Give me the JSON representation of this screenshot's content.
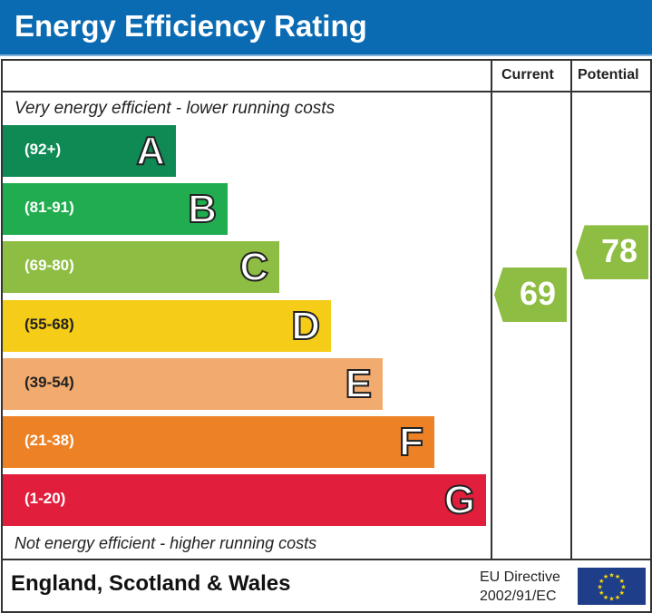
{
  "title": "Energy Efficiency Rating",
  "columns": {
    "current": "Current",
    "potential": "Potential"
  },
  "top_note": "Very energy efficient - lower running costs",
  "bottom_note": "Not energy efficient - higher running costs",
  "footer": {
    "region": "England, Scotland & Wales",
    "directive_line1": "EU Directive",
    "directive_line2": "2002/91/EC",
    "flag_icon": "eu-flag-icon"
  },
  "chart_data": {
    "type": "bar",
    "categories": [
      "A",
      "B",
      "C",
      "D",
      "E",
      "F",
      "G"
    ],
    "ranges": [
      "(92+)",
      "(81-91)",
      "(69-80)",
      "(55-68)",
      "(39-54)",
      "(21-38)",
      "(1-20)"
    ],
    "range_bounds": [
      [
        92,
        100
      ],
      [
        81,
        91
      ],
      [
        69,
        80
      ],
      [
        55,
        68
      ],
      [
        39,
        54
      ],
      [
        21,
        38
      ],
      [
        1,
        20
      ]
    ],
    "colors": [
      "#0f8a55",
      "#21ad4f",
      "#8dbd42",
      "#f5cc17",
      "#f2ab6e",
      "#ec8126",
      "#e11f3d"
    ],
    "current": {
      "value": 69,
      "label": "69",
      "color": "#8dbd42"
    },
    "potential": {
      "value": 78,
      "label": "78",
      "color": "#8dbd42"
    }
  }
}
